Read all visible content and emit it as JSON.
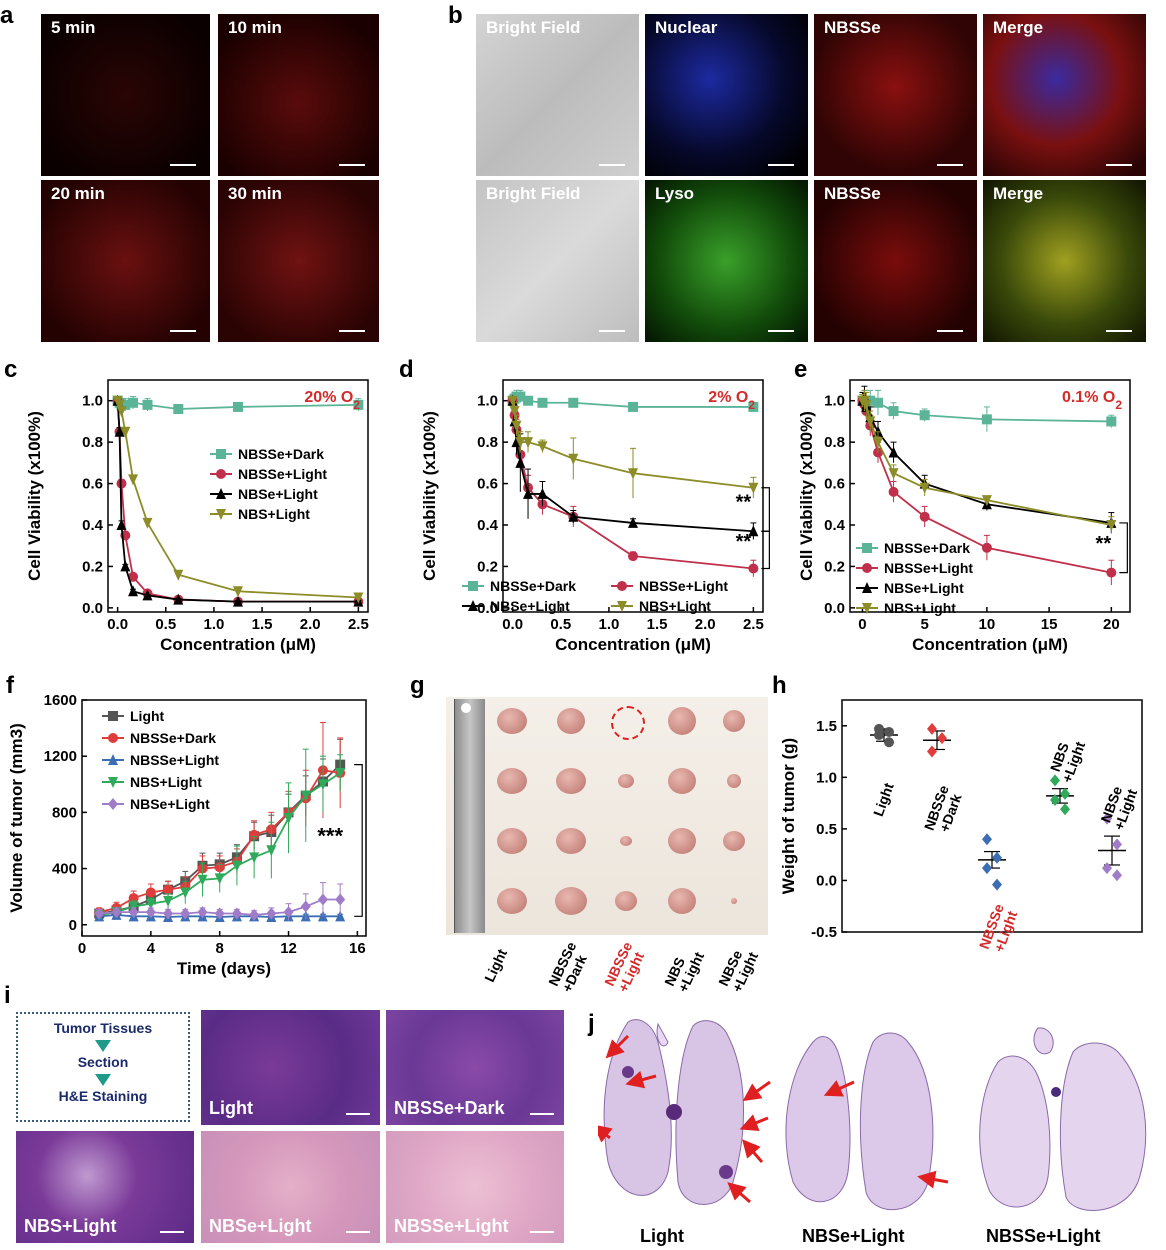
{
  "panels": {
    "a": "a",
    "b": "b",
    "c": "c",
    "d": "d",
    "e": "e",
    "f": "f",
    "g": "g",
    "h": "h",
    "i": "i",
    "j": "j"
  },
  "panel_a": {
    "tiles": [
      "5 min",
      "10 min",
      "20 min",
      "30 min"
    ]
  },
  "panel_b": {
    "row1": [
      "Bright Field",
      "Nuclear",
      "NBSSe",
      "Merge"
    ],
    "row2": [
      "Bright Field",
      "Lyso",
      "NBSSe",
      "Merge"
    ]
  },
  "colors": {
    "dark": "#5bb497",
    "light_red": "#c0304a",
    "nbse": "#000000",
    "nbs": "#8c8c28",
    "condition": "#d42a2a"
  },
  "chart_data": [
    {
      "panel": "c",
      "type": "line",
      "xlabel": "Concentration (μM)",
      "ylabel": "Cell Viability (x100%)",
      "annotation": "20% O2",
      "xlim": [
        -0.1,
        2.6
      ],
      "ylim": [
        -0.02,
        1.1
      ],
      "xticks": [
        0.0,
        0.5,
        1.0,
        1.5,
        2.0,
        2.5
      ],
      "yticks": [
        0.0,
        0.2,
        0.4,
        0.6,
        0.8,
        1.0
      ],
      "series": [
        {
          "name": "NBSSe+Dark",
          "color": "#5bb497",
          "marker": "square",
          "x": [
            0,
            0.02,
            0.04,
            0.08,
            0.16,
            0.31,
            0.63,
            1.25,
            2.5
          ],
          "y": [
            1.0,
            0.99,
            0.98,
            0.98,
            0.99,
            0.98,
            0.96,
            0.97,
            0.98
          ],
          "err": [
            0.02,
            0.02,
            0.02,
            0.03,
            0.03,
            0.03,
            0.01,
            0.02,
            0.03
          ]
        },
        {
          "name": "NBSSe+Light",
          "color": "#c0304a",
          "marker": "circle",
          "x": [
            0,
            0.02,
            0.04,
            0.08,
            0.16,
            0.31,
            0.63,
            1.25,
            2.5
          ],
          "y": [
            1.0,
            0.85,
            0.6,
            0.35,
            0.15,
            0.07,
            0.04,
            0.03,
            0.03
          ],
          "err": [
            0.01,
            0.02,
            0.02,
            0.01,
            0.01,
            0.01,
            0.01,
            0.005,
            0.005
          ]
        },
        {
          "name": "NBSe+Light",
          "color": "#000000",
          "marker": "triangle-up",
          "x": [
            0,
            0.02,
            0.04,
            0.08,
            0.16,
            0.31,
            0.63,
            1.25,
            2.5
          ],
          "y": [
            1.0,
            0.85,
            0.4,
            0.2,
            0.08,
            0.06,
            0.04,
            0.03,
            0.03
          ],
          "err": [
            0.01,
            0.02,
            0.02,
            0.01,
            0.01,
            0.005,
            0.005,
            0.005,
            0.005
          ]
        },
        {
          "name": "NBS+Light",
          "color": "#8c8c28",
          "marker": "triangle-down",
          "x": [
            0,
            0.02,
            0.04,
            0.08,
            0.16,
            0.31,
            0.63,
            1.25,
            2.5
          ],
          "y": [
            1.0,
            0.98,
            0.95,
            0.85,
            0.62,
            0.41,
            0.16,
            0.08,
            0.05
          ],
          "err": [
            0.01,
            0.02,
            0.02,
            0.02,
            0.02,
            0.02,
            0.01,
            0.01,
            0.005
          ]
        }
      ],
      "significance": []
    },
    {
      "panel": "d",
      "type": "line",
      "xlabel": "Concentration (μM)",
      "ylabel": "Cell Viability (x100%)",
      "annotation": "2% O2",
      "xlim": [
        -0.1,
        2.6
      ],
      "ylim": [
        -0.02,
        1.1
      ],
      "xticks": [
        0.0,
        0.5,
        1.0,
        1.5,
        2.0,
        2.5
      ],
      "yticks": [
        0.0,
        0.2,
        0.4,
        0.6,
        0.8,
        1.0
      ],
      "series": [
        {
          "name": "NBSSe+Dark",
          "color": "#5bb497",
          "marker": "square",
          "x": [
            0,
            0.02,
            0.04,
            0.08,
            0.16,
            0.31,
            0.63,
            1.25,
            2.5
          ],
          "y": [
            1.0,
            1.01,
            1.02,
            1.02,
            1.0,
            0.99,
            0.99,
            0.97,
            0.97
          ],
          "err": [
            0.02,
            0.03,
            0.03,
            0.03,
            0.02,
            0.01,
            0.01,
            0.01,
            0.01
          ]
        },
        {
          "name": "NBSSe+Light",
          "color": "#c0304a",
          "marker": "circle",
          "x": [
            0,
            0.02,
            0.04,
            0.08,
            0.16,
            0.31,
            0.63,
            1.25,
            2.5
          ],
          "y": [
            1.0,
            0.93,
            0.86,
            0.74,
            0.58,
            0.5,
            0.44,
            0.25,
            0.19
          ],
          "err": [
            0.02,
            0.04,
            0.05,
            0.06,
            0.06,
            0.05,
            0.05,
            0.02,
            0.04
          ]
        },
        {
          "name": "NBSe+Light",
          "color": "#000000",
          "marker": "triangle-up",
          "x": [
            0,
            0.02,
            0.04,
            0.08,
            0.16,
            0.31,
            0.63,
            1.25,
            2.5
          ],
          "y": [
            1.0,
            0.9,
            0.8,
            0.7,
            0.55,
            0.55,
            0.44,
            0.41,
            0.37
          ],
          "err": [
            0.02,
            0.05,
            0.06,
            0.14,
            0.12,
            0.06,
            0.03,
            0.02,
            0.04
          ]
        },
        {
          "name": "NBS+Light",
          "color": "#8c8c28",
          "marker": "triangle-down",
          "x": [
            0,
            0.02,
            0.04,
            0.08,
            0.16,
            0.31,
            0.63,
            1.25,
            2.5
          ],
          "y": [
            1.0,
            0.95,
            0.88,
            0.8,
            0.8,
            0.78,
            0.72,
            0.65,
            0.58
          ],
          "err": [
            0.02,
            0.04,
            0.05,
            0.05,
            0.05,
            0.03,
            0.1,
            0.12,
            0.05
          ]
        }
      ],
      "significance": [
        "**",
        "**"
      ]
    },
    {
      "panel": "e",
      "type": "line",
      "xlabel": "Concentration (μM)",
      "ylabel": "Cell Viability (x100%)",
      "annotation": "0.1% O2",
      "xlim": [
        -1,
        21.5
      ],
      "ylim": [
        -0.02,
        1.1
      ],
      "xticks": [
        0,
        5,
        10,
        15,
        20
      ],
      "yticks": [
        0.0,
        0.2,
        0.4,
        0.6,
        0.8,
        1.0
      ],
      "series": [
        {
          "name": "NBSSe+Dark",
          "color": "#5bb497",
          "marker": "square",
          "x": [
            0,
            0.16,
            0.31,
            0.63,
            1.25,
            2.5,
            5,
            10,
            20
          ],
          "y": [
            1.0,
            1.0,
            0.98,
            1.0,
            0.99,
            0.95,
            0.93,
            0.91,
            0.9
          ],
          "err": [
            0.03,
            0.04,
            0.04,
            0.05,
            0.06,
            0.04,
            0.03,
            0.06,
            0.03
          ]
        },
        {
          "name": "NBSSe+Light",
          "color": "#c0304a",
          "marker": "circle",
          "x": [
            0,
            0.16,
            0.31,
            0.63,
            1.25,
            2.5,
            5,
            10,
            20
          ],
          "y": [
            1.0,
            0.98,
            0.95,
            0.88,
            0.75,
            0.56,
            0.44,
            0.29,
            0.17
          ],
          "err": [
            0.03,
            0.04,
            0.04,
            0.05,
            0.05,
            0.05,
            0.05,
            0.06,
            0.06
          ]
        },
        {
          "name": "NBSe+Light",
          "color": "#000000",
          "marker": "triangle-up",
          "x": [
            0,
            0.16,
            0.31,
            0.63,
            1.25,
            2.5,
            5,
            10,
            20
          ],
          "y": [
            1.0,
            1.02,
            0.97,
            0.92,
            0.85,
            0.75,
            0.6,
            0.5,
            0.41
          ],
          "err": [
            0.04,
            0.05,
            0.05,
            0.05,
            0.05,
            0.05,
            0.04,
            0.03,
            0.05
          ]
        },
        {
          "name": "NBS+Light",
          "color": "#8c8c28",
          "marker": "triangle-down",
          "x": [
            0,
            0.16,
            0.31,
            0.63,
            1.25,
            2.5,
            5,
            10,
            20
          ],
          "y": [
            1.0,
            1.0,
            0.98,
            0.9,
            0.8,
            0.65,
            0.58,
            0.52,
            0.4
          ],
          "err": [
            0.03,
            0.05,
            0.06,
            0.05,
            0.05,
            0.04,
            0.04,
            0.02,
            0.04
          ]
        }
      ],
      "significance": [
        "**"
      ]
    },
    {
      "panel": "f",
      "type": "line",
      "xlabel": "Time (days)",
      "ylabel": "Volume of tumor (mm3)",
      "xlim": [
        0,
        16.5
      ],
      "ylim": [
        -80,
        1600
      ],
      "xticks": [
        0,
        4,
        8,
        12,
        16
      ],
      "yticks": [
        0,
        400,
        800,
        1200,
        1600
      ],
      "series": [
        {
          "name": "Light",
          "color": "#555555",
          "marker": "square",
          "x": [
            1,
            2,
            3,
            4,
            5,
            6,
            7,
            8,
            9,
            10,
            11,
            12,
            13,
            14,
            15
          ],
          "y": [
            80,
            100,
            130,
            180,
            250,
            310,
            420,
            430,
            480,
            630,
            660,
            800,
            920,
            1020,
            1140
          ],
          "err": [
            30,
            40,
            50,
            60,
            60,
            70,
            90,
            80,
            90,
            100,
            120,
            130,
            140,
            160,
            180
          ]
        },
        {
          "name": "NBSSe+Dark",
          "color": "#e03c3c",
          "marker": "circle",
          "x": [
            1,
            2,
            3,
            4,
            5,
            6,
            7,
            8,
            9,
            10,
            11,
            12,
            13,
            14,
            15
          ],
          "y": [
            90,
            120,
            190,
            230,
            250,
            270,
            400,
            410,
            450,
            640,
            680,
            800,
            900,
            1100,
            1080
          ],
          "err": [
            30,
            40,
            50,
            60,
            60,
            70,
            90,
            80,
            90,
            100,
            120,
            150,
            200,
            340,
            250
          ]
        },
        {
          "name": "NBSSe+Light",
          "color": "#3c6eb4",
          "marker": "triangle-up",
          "x": [
            1,
            2,
            3,
            4,
            5,
            6,
            7,
            8,
            9,
            10,
            11,
            12,
            13,
            14,
            15
          ],
          "y": [
            60,
            70,
            60,
            60,
            55,
            60,
            60,
            55,
            60,
            60,
            55,
            60,
            60,
            60,
            60
          ],
          "err": [
            15,
            15,
            15,
            15,
            15,
            15,
            15,
            15,
            15,
            15,
            15,
            15,
            15,
            15,
            15
          ]
        },
        {
          "name": "NBS+Light",
          "color": "#2eaa5a",
          "marker": "triangle-down",
          "x": [
            1,
            2,
            3,
            4,
            5,
            6,
            7,
            8,
            9,
            10,
            11,
            12,
            13,
            14,
            15
          ],
          "y": [
            70,
            90,
            130,
            150,
            170,
            230,
            320,
            330,
            420,
            480,
            530,
            760,
            920,
            1000,
            1080
          ],
          "err": [
            30,
            30,
            40,
            40,
            50,
            80,
            120,
            100,
            140,
            150,
            200,
            250,
            330,
            200,
            130
          ]
        },
        {
          "name": "NBSe+Light",
          "color": "#a07cc8",
          "marker": "diamond",
          "x": [
            1,
            2,
            3,
            4,
            5,
            6,
            7,
            8,
            9,
            10,
            11,
            12,
            13,
            14,
            15
          ],
          "y": [
            80,
            90,
            90,
            90,
            80,
            80,
            90,
            80,
            80,
            70,
            80,
            90,
            130,
            180,
            180
          ],
          "err": [
            30,
            30,
            30,
            30,
            30,
            30,
            30,
            30,
            30,
            30,
            40,
            60,
            90,
            120,
            110
          ]
        }
      ],
      "significance": [
        "***"
      ]
    },
    {
      "panel": "h",
      "type": "scatter",
      "ylabel": "Weight of tumor (g)",
      "ylim": [
        -0.5,
        1.75
      ],
      "yticks": [
        -0.5,
        0.0,
        0.5,
        1.0,
        1.5
      ],
      "groups": [
        {
          "name": "Light",
          "color": "#555555",
          "marker": "circle",
          "mean": 1.41,
          "sem": 0.06,
          "points": [
            1.47,
            1.44,
            1.41,
            1.34
          ]
        },
        {
          "name": "NBSSe +Dark",
          "color": "#e03c3c",
          "marker": "diamond",
          "mean": 1.36,
          "sem": 0.09,
          "points": [
            1.47,
            1.38,
            1.25
          ]
        },
        {
          "name": "NBSSe +Light",
          "color": "#3c6eb4",
          "marker": "diamond",
          "mean": 0.2,
          "sem": 0.08,
          "points": [
            0.4,
            0.22,
            0.12,
            -0.04
          ]
        },
        {
          "name": "NBS +Light",
          "color": "#2eaa5a",
          "marker": "diamond",
          "mean": 0.82,
          "sem": 0.07,
          "points": [
            0.97,
            0.84,
            0.78,
            0.69
          ]
        },
        {
          "name": "NBSe +Light",
          "color": "#a07cc8",
          "marker": "diamond",
          "mean": 0.29,
          "sem": 0.14,
          "points": [
            0.6,
            0.35,
            0.12,
            0.05
          ]
        }
      ]
    }
  ],
  "panel_g": {
    "columns": [
      "Light",
      "NBSSe\n+Dark",
      "NBSSe\n+Light",
      "NBS\n+Light",
      "NBSe\n+Light"
    ]
  },
  "panel_i": {
    "flow": [
      "Tumor Tissues",
      "Section",
      "H&E Staining"
    ],
    "tiles": [
      "Light",
      "NBSSe+Dark",
      "NBS+Light",
      "NBSe+Light",
      "NBSSe+Light"
    ]
  },
  "panel_j": {
    "labels": [
      "Light",
      "NBSe+Light",
      "NBSSe+Light"
    ]
  }
}
